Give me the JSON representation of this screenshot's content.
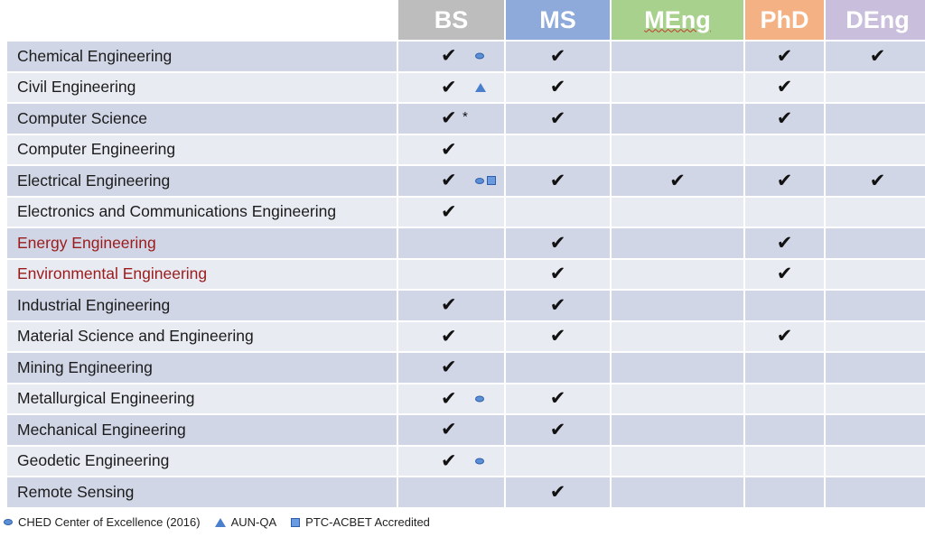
{
  "headers": [
    {
      "label": "",
      "color": ""
    },
    {
      "label": "BS",
      "color": "#bdbdbd"
    },
    {
      "label": "MS",
      "color": "#8eaadb"
    },
    {
      "label": "MEng",
      "color": "#a9d18e"
    },
    {
      "label": "PhD",
      "color": "#f4b183"
    },
    {
      "label": "DEng",
      "color": "#c9bfdc"
    }
  ],
  "check_symbol": "✔",
  "star_symbol": "*",
  "rows": [
    {
      "name": "Chemical Engineering",
      "bs": true,
      "ms": true,
      "meng": false,
      "phd": true,
      "deng": true,
      "marks": [
        "oval"
      ],
      "star": false,
      "red": false
    },
    {
      "name": "Civil Engineering",
      "bs": true,
      "ms": true,
      "meng": false,
      "phd": true,
      "deng": false,
      "marks": [
        "triangle"
      ],
      "star": false,
      "red": false
    },
    {
      "name": "Computer Science",
      "bs": true,
      "ms": true,
      "meng": false,
      "phd": true,
      "deng": false,
      "marks": [],
      "star": true,
      "red": false
    },
    {
      "name": "Computer Engineering",
      "bs": true,
      "ms": false,
      "meng": false,
      "phd": false,
      "deng": false,
      "marks": [],
      "star": false,
      "red": false
    },
    {
      "name": "Electrical Engineering",
      "bs": true,
      "ms": true,
      "meng": true,
      "phd": true,
      "deng": true,
      "marks": [
        "oval",
        "square"
      ],
      "star": false,
      "red": false
    },
    {
      "name": "Electronics and Communications Engineering",
      "bs": true,
      "ms": false,
      "meng": false,
      "phd": false,
      "deng": false,
      "marks": [],
      "star": false,
      "red": false
    },
    {
      "name": "Energy Engineering",
      "bs": false,
      "ms": true,
      "meng": false,
      "phd": true,
      "deng": false,
      "marks": [],
      "star": false,
      "red": true
    },
    {
      "name": "Environmental Engineering",
      "bs": false,
      "ms": true,
      "meng": false,
      "phd": true,
      "deng": false,
      "marks": [],
      "star": false,
      "red": true
    },
    {
      "name": "Industrial Engineering",
      "bs": true,
      "ms": true,
      "meng": false,
      "phd": false,
      "deng": false,
      "marks": [],
      "star": false,
      "red": false
    },
    {
      "name": "Material Science and Engineering",
      "bs": true,
      "ms": true,
      "meng": false,
      "phd": true,
      "deng": false,
      "marks": [],
      "star": false,
      "red": false
    },
    {
      "name": "Mining Engineering",
      "bs": true,
      "ms": false,
      "meng": false,
      "phd": false,
      "deng": false,
      "marks": [],
      "star": false,
      "red": false
    },
    {
      "name": "Metallurgical Engineering",
      "bs": true,
      "ms": true,
      "meng": false,
      "phd": false,
      "deng": false,
      "marks": [
        "oval"
      ],
      "star": false,
      "red": false
    },
    {
      "name": "Mechanical Engineering",
      "bs": true,
      "ms": true,
      "meng": false,
      "phd": false,
      "deng": false,
      "marks": [],
      "star": false,
      "red": false
    },
    {
      "name": "Geodetic Engineering",
      "bs": true,
      "ms": false,
      "meng": false,
      "phd": false,
      "deng": false,
      "marks": [
        "oval"
      ],
      "star": false,
      "red": false
    },
    {
      "name": "Remote Sensing",
      "bs": false,
      "ms": true,
      "meng": false,
      "phd": false,
      "deng": false,
      "marks": [],
      "star": false,
      "red": false
    }
  ],
  "legend": [
    {
      "icon": "oval",
      "label": "CHED Center of Excellence (2016)"
    },
    {
      "icon": "triangle",
      "label": "AUN-QA"
    },
    {
      "icon": "square",
      "label": "PTC-ACBET Accredited"
    }
  ],
  "colors": {
    "row_odd": "#d0d6e6",
    "row_even": "#e8ebf2",
    "program_red": "#9b1b1b",
    "mark_blue": "#5b8fd6"
  }
}
